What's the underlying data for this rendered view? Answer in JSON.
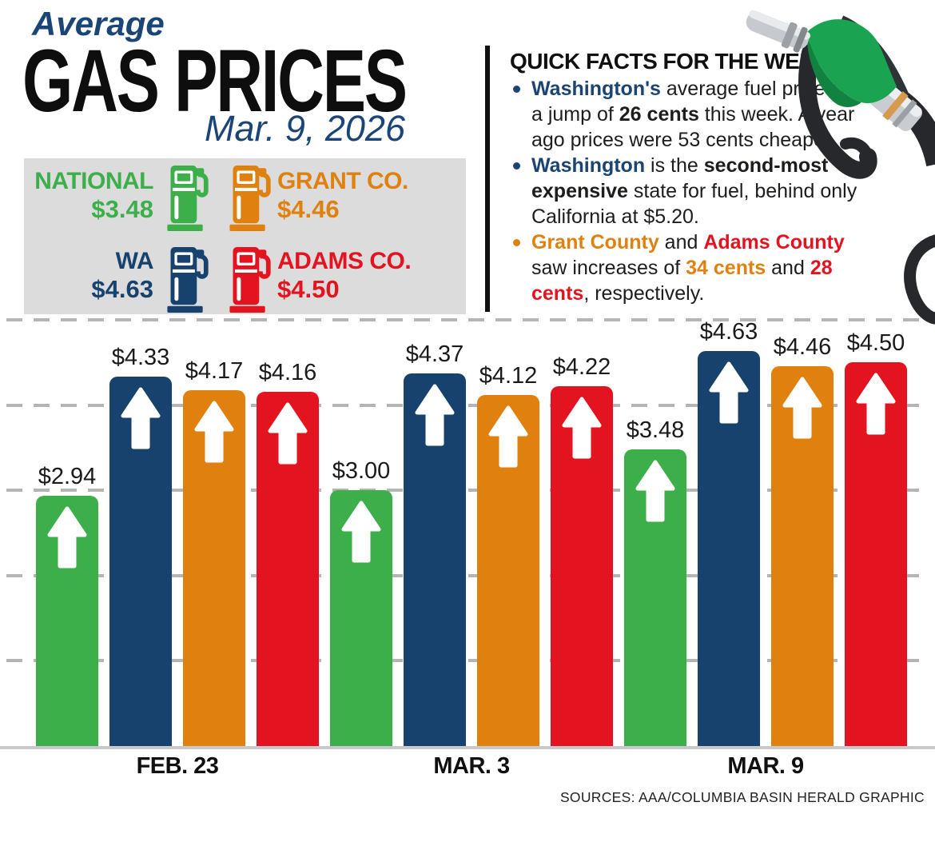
{
  "title": {
    "kicker": "Average",
    "main": "GAS PRICES",
    "date": "Mar. 9, 2026"
  },
  "legend": {
    "items": [
      {
        "label": "NATIONAL",
        "price": "$3.48",
        "color": "#3caf4a"
      },
      {
        "label": "GRANT CO.",
        "price": "$4.46",
        "color": "#e0810f"
      },
      {
        "label": "WA",
        "price": "$4.63",
        "color": "#17426e"
      },
      {
        "label": "ADAMS CO.",
        "price": "$4.50",
        "color": "#e3131f"
      }
    ]
  },
  "quick_facts": {
    "title": "QUICK FACTS FOR THE WEEK:",
    "bullets": [
      {
        "bullet_color": "#1c4471",
        "segments": [
          {
            "t": "Washington's",
            "b": true,
            "c": "#1c4471"
          },
          {
            "t": " average fuel price saw"
          },
          {
            "br": true
          },
          {
            "t": "a jump of "
          },
          {
            "t": "26 cents",
            "b": true
          },
          {
            "t": " this week. A year"
          },
          {
            "br": true
          },
          {
            "t": "ago prices were 53 cents cheaper."
          }
        ]
      },
      {
        "bullet_color": "#1c4471",
        "segments": [
          {
            "t": "Washington",
            "b": true,
            "c": "#1c4471"
          },
          {
            "t": " is the "
          },
          {
            "t": "second-most",
            "b": true
          },
          {
            "br": true
          },
          {
            "t": "expensive",
            "b": true
          },
          {
            "t": " state for fuel, behind only"
          },
          {
            "br": true
          },
          {
            "t": "California at $5.20."
          }
        ]
      },
      {
        "bullet_color": "#e0810f",
        "segments": [
          {
            "t": "Grant County",
            "b": true,
            "c": "#e0810f"
          },
          {
            "t": " and "
          },
          {
            "t": "Adams County",
            "b": true,
            "c": "#e3131f"
          },
          {
            "br": true
          },
          {
            "t": "saw increases of "
          },
          {
            "t": "34 cents",
            "b": true,
            "c": "#e0810f"
          },
          {
            "t": " and "
          },
          {
            "t": "28",
            "b": true,
            "c": "#e3131f"
          },
          {
            "br": true
          },
          {
            "t": "cents",
            "b": true,
            "c": "#e3131f"
          },
          {
            "t": ", respectively."
          }
        ]
      }
    ]
  },
  "chart_data": {
    "type": "bar",
    "categories": [
      "FEB. 23",
      "MAR. 3",
      "MAR. 9"
    ],
    "series": [
      {
        "name": "NATIONAL",
        "color": "#3caf4a",
        "values": [
          2.94,
          3.0,
          3.48
        ]
      },
      {
        "name": "WA",
        "color": "#17426e",
        "values": [
          4.33,
          4.37,
          4.63
        ]
      },
      {
        "name": "GRANT CO.",
        "color": "#e0810f",
        "values": [
          4.17,
          4.12,
          4.46
        ]
      },
      {
        "name": "ADAMS CO.",
        "color": "#e3131f",
        "values": [
          4.16,
          4.22,
          4.5
        ]
      }
    ],
    "ylim": [
      0,
      5
    ],
    "gridline_values": [
      1,
      2,
      3,
      4,
      5
    ],
    "grid": "dashed",
    "bar_trend_arrow": "up",
    "value_prefix": "$",
    "xlabel": "",
    "ylabel": ""
  },
  "footer": {
    "sources": "SOURCES: AAA/COLUMBIA BASIN HERALD GRAPHIC"
  }
}
